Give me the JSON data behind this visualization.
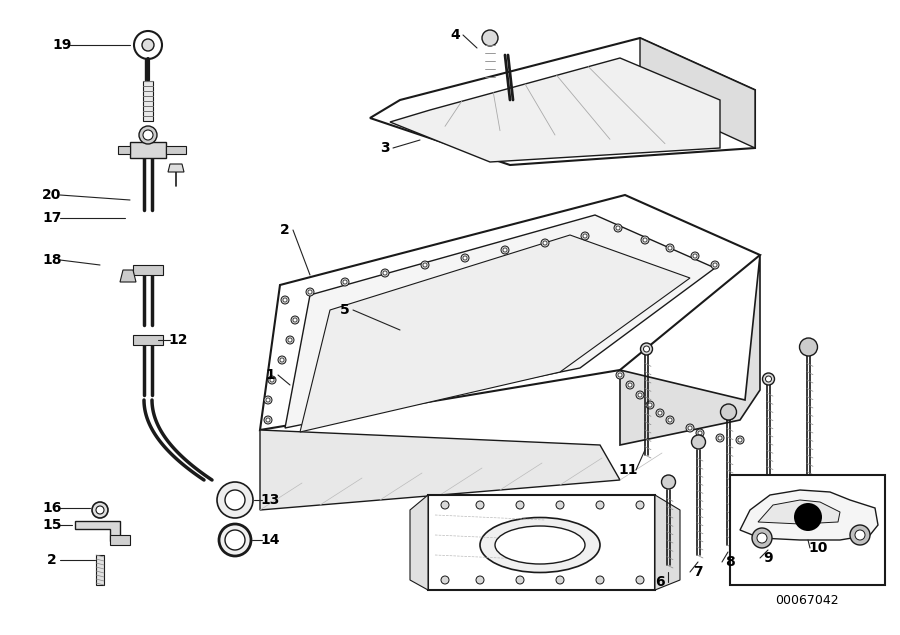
{
  "diagram_id": "00067042",
  "background_color": "#ffffff",
  "line_color": "#1a1a1a",
  "fig_width": 9.0,
  "fig_height": 6.35,
  "dpi": 100,
  "label_fontsize": 10,
  "label_fontsize_small": 8,
  "gray1": "#cccccc",
  "gray2": "#aaaaaa",
  "gray3": "#888888",
  "gray4": "#666666",
  "gray5": "#444444"
}
